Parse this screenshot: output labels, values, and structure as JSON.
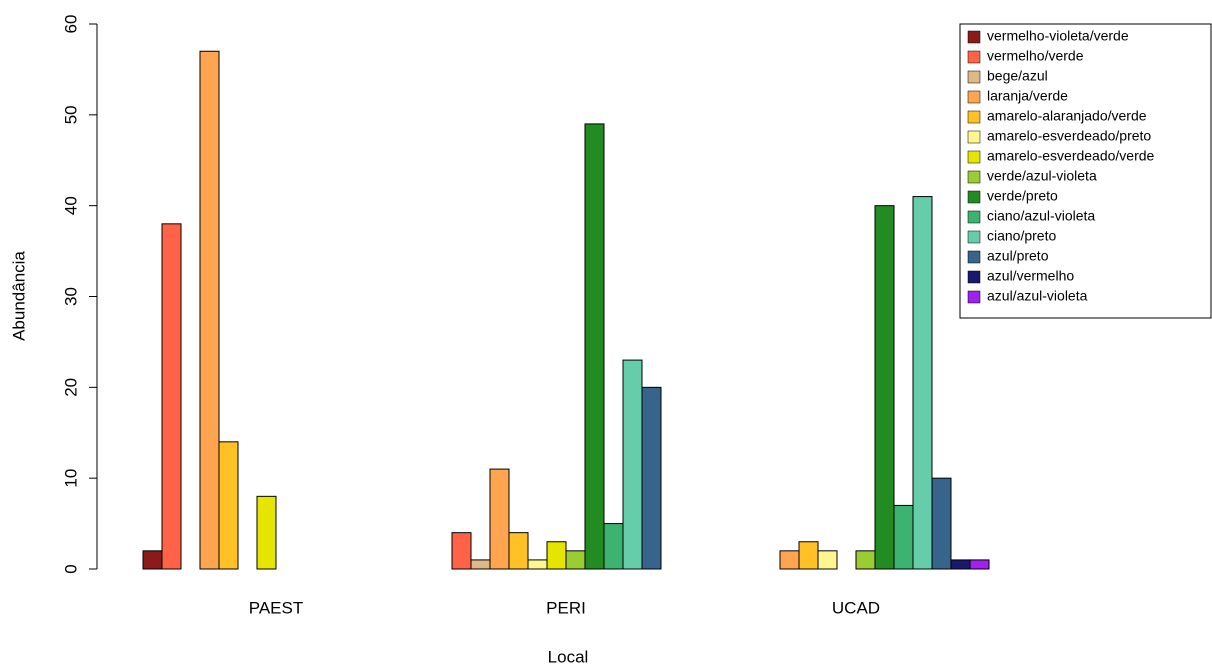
{
  "chart_data": {
    "type": "bar",
    "x_label": "Local",
    "y_label": "Abundância",
    "categories": [
      "PAEST",
      "PERI",
      "UCAD"
    ],
    "ylim": [
      0,
      60
    ],
    "yticks": [
      0,
      10,
      20,
      30,
      40,
      50,
      60
    ],
    "legend": "top-right",
    "series": [
      {
        "name": "vermelho-violeta/verde",
        "color": "#8b1a1a",
        "values": [
          2,
          0,
          0
        ]
      },
      {
        "name": "vermelho/verde",
        "color": "#ff6347",
        "values": [
          38,
          4,
          0
        ]
      },
      {
        "name": "bege/azul",
        "color": "#deb887",
        "values": [
          0,
          1,
          0
        ]
      },
      {
        "name": "laranja/verde",
        "color": "#ffa54f",
        "values": [
          57,
          11,
          2
        ]
      },
      {
        "name": "amarelo-alaranjado/verde",
        "color": "#ffc125",
        "values": [
          14,
          4,
          3
        ]
      },
      {
        "name": "amarelo-esverdeado/preto",
        "color": "#fff68f",
        "values": [
          0,
          1,
          2
        ]
      },
      {
        "name": "amarelo-esverdeado/verde",
        "color": "#e5e500",
        "values": [
          8,
          3,
          0
        ]
      },
      {
        "name": "verde/azul-violeta",
        "color": "#9acd32",
        "values": [
          0,
          2,
          2
        ]
      },
      {
        "name": "verde/preto",
        "color": "#228b22",
        "values": [
          0,
          49,
          40
        ]
      },
      {
        "name": "ciano/azul-violeta",
        "color": "#3cb371",
        "values": [
          0,
          5,
          7
        ]
      },
      {
        "name": "ciano/preto",
        "color": "#66cdaa",
        "values": [
          0,
          23,
          41
        ]
      },
      {
        "name": "azul/preto",
        "color": "#36648b",
        "values": [
          0,
          20,
          10
        ]
      },
      {
        "name": "azul/vermelho",
        "color": "#191970",
        "values": [
          0,
          0,
          1
        ]
      },
      {
        "name": "azul/azul-violeta",
        "color": "#a020f0",
        "values": [
          0,
          0,
          1
        ]
      }
    ]
  }
}
